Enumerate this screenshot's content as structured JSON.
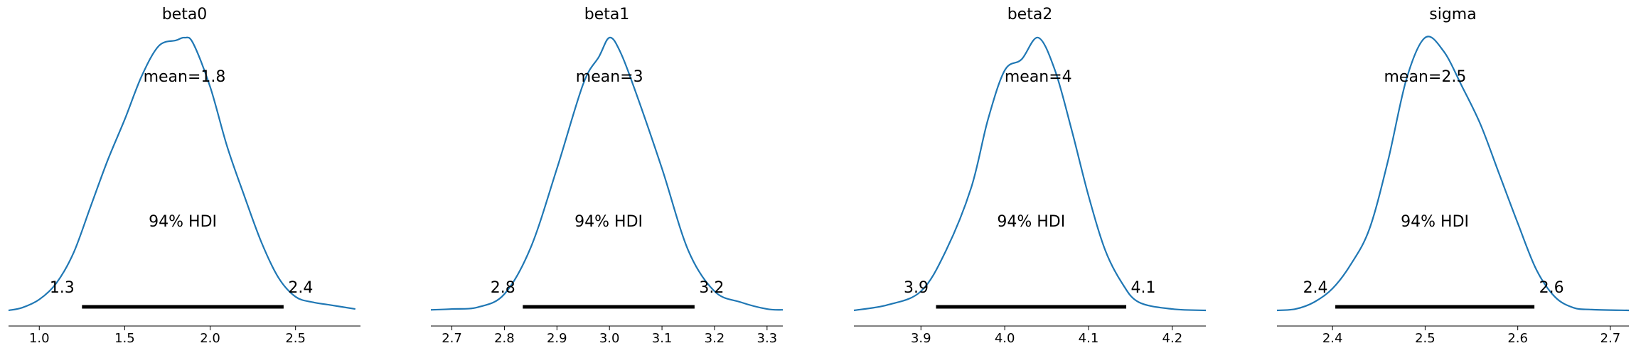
{
  "colors": {
    "density": "#1f77b4",
    "hdi": "#000000",
    "text": "#000000",
    "background": "#ffffff"
  },
  "chart_data": [
    {
      "type": "line",
      "title": "beta0",
      "xlim": [
        0.82,
        2.88
      ],
      "mean_label": "mean=1.8",
      "hdi_label": "94% HDI",
      "hdi": [
        1.25,
        2.43
      ],
      "hdi_low_label": "1.3",
      "hdi_high_label": "2.4",
      "xticks": [
        1.0,
        1.5,
        2.0,
        2.5
      ],
      "xtick_labels": [
        "1.0",
        "1.5",
        "2.0",
        "2.5"
      ],
      "x": [
        0.82,
        0.9,
        1.0,
        1.1,
        1.2,
        1.3,
        1.4,
        1.5,
        1.6,
        1.7,
        1.8,
        1.85,
        1.9,
        2.0,
        2.1,
        2.2,
        2.3,
        2.4,
        2.5,
        2.6,
        2.7,
        2.85
      ],
      "density": [
        0.0,
        0.01,
        0.04,
        0.1,
        0.21,
        0.38,
        0.55,
        0.7,
        0.86,
        0.97,
        0.99,
        1.0,
        0.98,
        0.82,
        0.6,
        0.42,
        0.25,
        0.12,
        0.05,
        0.03,
        0.02,
        0.005
      ]
    },
    {
      "type": "line",
      "title": "beta1",
      "xlim": [
        2.66,
        3.33
      ],
      "mean_label": "mean=3",
      "hdi_label": "94% HDI",
      "hdi": [
        2.835,
        3.162
      ],
      "hdi_low_label": "2.8",
      "hdi_high_label": "3.2",
      "xticks": [
        2.7,
        2.8,
        2.9,
        3.0,
        3.1,
        3.2,
        3.3
      ],
      "xtick_labels": [
        "2.7",
        "2.8",
        "2.9",
        "3.0",
        "3.1",
        "3.2",
        "3.3"
      ],
      "x": [
        2.66,
        2.7,
        2.75,
        2.8,
        2.85,
        2.9,
        2.95,
        2.98,
        3.0,
        3.02,
        3.05,
        3.1,
        3.15,
        3.2,
        3.25,
        3.3,
        3.33
      ],
      "density": [
        0.002,
        0.005,
        0.012,
        0.06,
        0.23,
        0.52,
        0.83,
        0.93,
        1.0,
        0.95,
        0.8,
        0.52,
        0.22,
        0.07,
        0.03,
        0.005,
        0.002
      ]
    },
    {
      "type": "line",
      "title": "beta2",
      "xlim": [
        3.82,
        4.24
      ],
      "mean_label": "mean=4",
      "hdi_label": "94% HDI",
      "hdi": [
        3.918,
        4.145
      ],
      "hdi_low_label": "3.9",
      "hdi_high_label": "4.1",
      "xticks": [
        3.9,
        4.0,
        4.1,
        4.2
      ],
      "xtick_labels": [
        "3.9",
        "4.0",
        "4.1",
        "4.2"
      ],
      "x": [
        3.82,
        3.86,
        3.9,
        3.93,
        3.96,
        3.98,
        4.0,
        4.02,
        4.04,
        4.06,
        4.08,
        4.1,
        4.12,
        4.14,
        4.16,
        4.2,
        4.24
      ],
      "density": [
        0.0,
        0.02,
        0.07,
        0.22,
        0.45,
        0.7,
        0.88,
        0.92,
        1.0,
        0.88,
        0.66,
        0.42,
        0.22,
        0.1,
        0.03,
        0.005,
        0.0
      ]
    },
    {
      "type": "line",
      "title": "sigma",
      "xlim": [
        2.34,
        2.72
      ],
      "mean_label": "mean=2.5",
      "hdi_label": "94% HDI",
      "hdi": [
        2.403,
        2.618
      ],
      "hdi_low_label": "2.4",
      "hdi_high_label": "2.6",
      "xticks": [
        2.4,
        2.5,
        2.6,
        2.7
      ],
      "xtick_labels": [
        "2.4",
        "2.5",
        "2.6",
        "2.7"
      ],
      "x": [
        2.34,
        2.36,
        2.38,
        2.4,
        2.42,
        2.44,
        2.46,
        2.48,
        2.5,
        2.52,
        2.54,
        2.56,
        2.58,
        2.6,
        2.62,
        2.64,
        2.66,
        2.68,
        2.72
      ],
      "density": [
        0.0,
        0.005,
        0.03,
        0.08,
        0.17,
        0.3,
        0.55,
        0.85,
        1.0,
        0.95,
        0.82,
        0.68,
        0.5,
        0.32,
        0.15,
        0.05,
        0.01,
        0.003,
        0.0
      ]
    }
  ]
}
